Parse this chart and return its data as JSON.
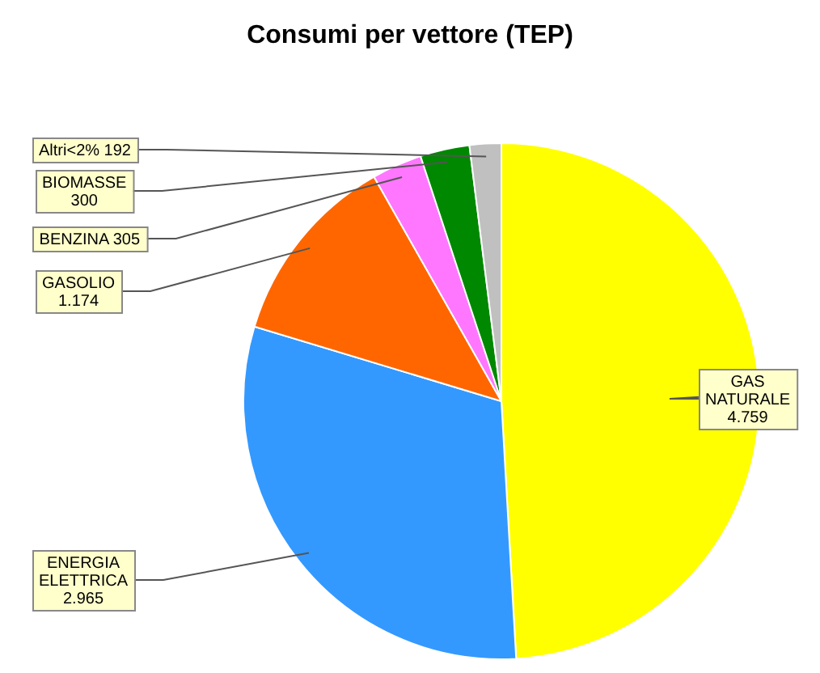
{
  "chart_data": {
    "type": "pie",
    "title": "Consumi per vettore (TEP)",
    "categories": [
      "GAS NATURALE",
      "ENERGIA ELETTRICA",
      "GASOLIO",
      "BENZINA",
      "BIOMASSE",
      "Altri<2%"
    ],
    "values": [
      4759,
      2965,
      1174,
      305,
      300,
      192
    ],
    "value_labels": [
      "4.759",
      "2.965",
      "1.174",
      "305",
      "300",
      "192"
    ],
    "colors": [
      "#ffff00",
      "#3399ff",
      "#ff6600",
      "#ff77ff",
      "#008800",
      "#c0c0c0"
    ]
  }
}
